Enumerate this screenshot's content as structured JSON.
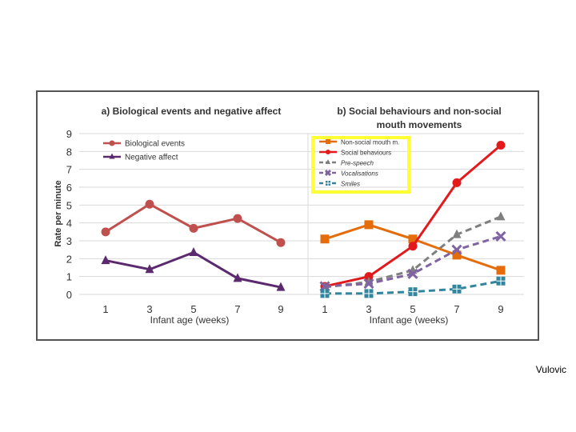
{
  "credit": "Vulovic",
  "chart_data": [
    {
      "type": "line",
      "title": "a) Biological events and negative affect",
      "xlabel": "Infant age (weeks)",
      "ylabel": "Rate per minute",
      "x": [
        1,
        3,
        5,
        7,
        9
      ],
      "ylim": [
        0,
        9
      ],
      "yticks": [
        0,
        1,
        2,
        3,
        4,
        5,
        6,
        7,
        8,
        9
      ],
      "grid": true,
      "legend": "top-left",
      "series": [
        {
          "name": "Biological events",
          "color": "#c0504d",
          "marker": "circle",
          "dash": "solid",
          "values": [
            3.5,
            5.05,
            3.7,
            4.25,
            2.9
          ]
        },
        {
          "name": "Negative affect",
          "color": "#5b2a6e",
          "marker": "triangle",
          "dash": "solid",
          "values": [
            1.9,
            1.4,
            2.35,
            0.9,
            0.4
          ]
        }
      ]
    },
    {
      "type": "line",
      "title": "b) Social behaviours and non-social",
      "title_line2": "mouth movements",
      "xlabel": "Infant age (weeks)",
      "x": [
        1,
        3,
        5,
        7,
        9
      ],
      "ylim": [
        0,
        9
      ],
      "grid": true,
      "legend": "top-left",
      "series": [
        {
          "name": "Non-social mouth m.",
          "color": "#e46c0a",
          "marker": "square",
          "dash": "solid",
          "italic": false,
          "values": [
            3.1,
            3.9,
            3.1,
            2.2,
            1.35
          ]
        },
        {
          "name": "Social behaviours",
          "color": "#e31a1c",
          "marker": "circle",
          "dash": "solid",
          "italic": false,
          "values": [
            0.45,
            1.0,
            2.7,
            6.25,
            8.35
          ]
        },
        {
          "name": "Pre-speech",
          "color": "#7f7f7f",
          "marker": "triangle",
          "dash": "dashed",
          "italic": true,
          "values": [
            0.4,
            0.7,
            1.35,
            3.35,
            4.35
          ]
        },
        {
          "name": "Vocalisations",
          "color": "#8064a2",
          "marker": "x",
          "dash": "dashed",
          "italic": true,
          "values": [
            0.45,
            0.6,
            1.15,
            2.5,
            3.25
          ]
        },
        {
          "name": "Smiles",
          "color": "#31859c",
          "marker": "plus",
          "dash": "dashed",
          "italic": true,
          "values": [
            0.05,
            0.05,
            0.15,
            0.3,
            0.75
          ]
        }
      ],
      "legend_highlight_color": "#ffff33"
    }
  ]
}
